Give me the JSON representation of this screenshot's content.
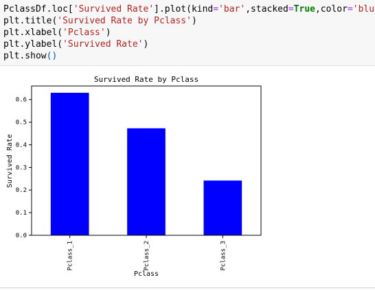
{
  "code": {
    "line1": {
      "a": "PclassDf.loc[",
      "b": "'Survived Rate'",
      "c": "].plot(kind",
      "d": "=",
      "e": "'bar'",
      "f": ",stacked",
      "g": "=",
      "h": "True",
      "i": ",color",
      "j": "=",
      "k": "'blue'",
      "l": ")"
    },
    "line2": {
      "a": "plt.title(",
      "b": "'Survived Rate by Pclass'",
      "c": ")"
    },
    "line3": {
      "a": "plt.xlabel(",
      "b": "'Pclass'",
      "c": ")"
    },
    "line4": {
      "a": "plt.ylabel(",
      "b": "'Survived Rate'",
      "c": ")"
    },
    "line5": {
      "a": "plt.show",
      "b": "()"
    }
  },
  "chart_data": {
    "type": "bar",
    "title": "Survived Rate by Pclass",
    "xlabel": "Pclass",
    "ylabel": "Survived Rate",
    "categories": [
      "Pclass_1",
      "Pclass_2",
      "Pclass_3"
    ],
    "values": [
      0.63,
      0.473,
      0.242
    ],
    "color": "#0000ff",
    "ylim": [
      0,
      0.66
    ],
    "yticks": [
      "0.0",
      "0.1",
      "0.2",
      "0.3",
      "0.4",
      "0.5",
      "0.6"
    ],
    "grid": false,
    "legend": "none"
  }
}
